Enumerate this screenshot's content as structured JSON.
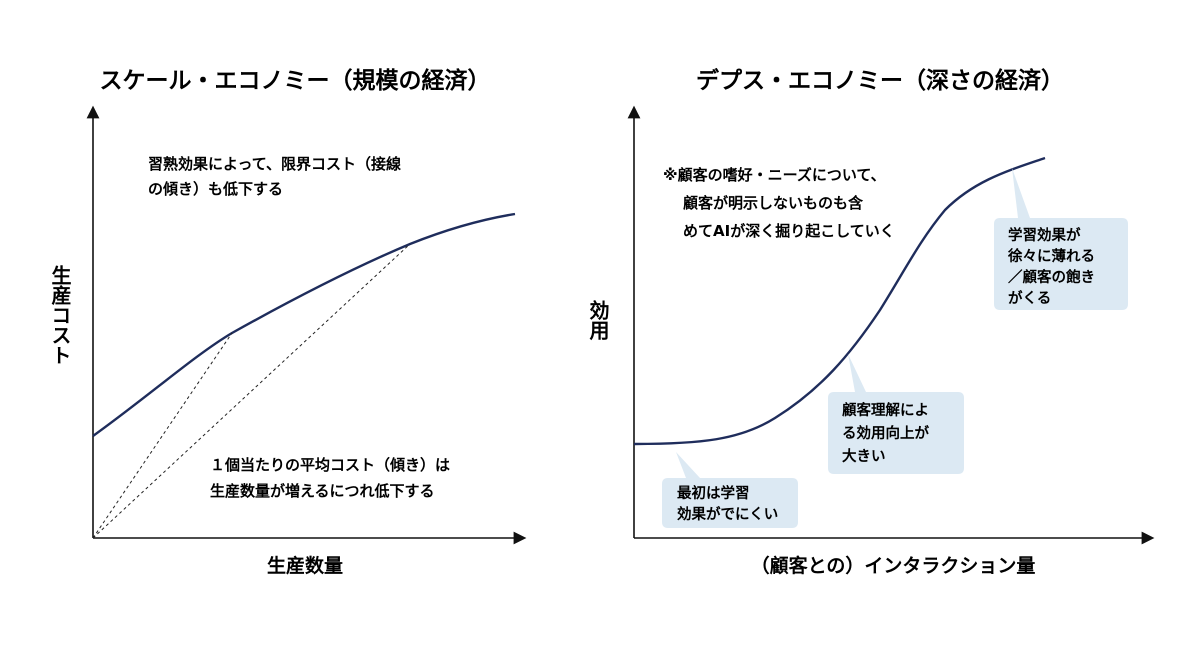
{
  "left_diagram": {
    "title": "スケール・エコノミー（規模の経済）",
    "y_axis_label": "生産コスト",
    "x_axis_label": "生産数量",
    "annotation_top": [
      "習熟効果によって、限界コスト（接線",
      "の傾き）も低下する"
    ],
    "annotation_bottom": [
      "１個当たりの平均コスト（傾き）は",
      "生産数量が増えるにつれ低下する"
    ],
    "curve_color": "#1f2d5c"
  },
  "right_diagram": {
    "title": "デプス・エコノミー（深さの経済）",
    "y_axis_label": "効用",
    "x_axis_label": "（顧客との）インタラクション量",
    "note": [
      "※顧客の嗜好・ニーズについて、",
      "顧客が明示しないものも含",
      "めてAIが深く掘り起こしていく"
    ],
    "callouts": [
      {
        "lines": [
          "最初は学習",
          "効果がでにくい"
        ]
      },
      {
        "lines": [
          "顧客理解によ",
          "る効用向上が",
          "大きい"
        ]
      },
      {
        "lines": [
          "学習効果が",
          "徐々に薄れる",
          "／顧客の飽き",
          "がくる"
        ]
      }
    ],
    "curve_color": "#1f2d5c",
    "callout_fill": "#dce9f3"
  }
}
